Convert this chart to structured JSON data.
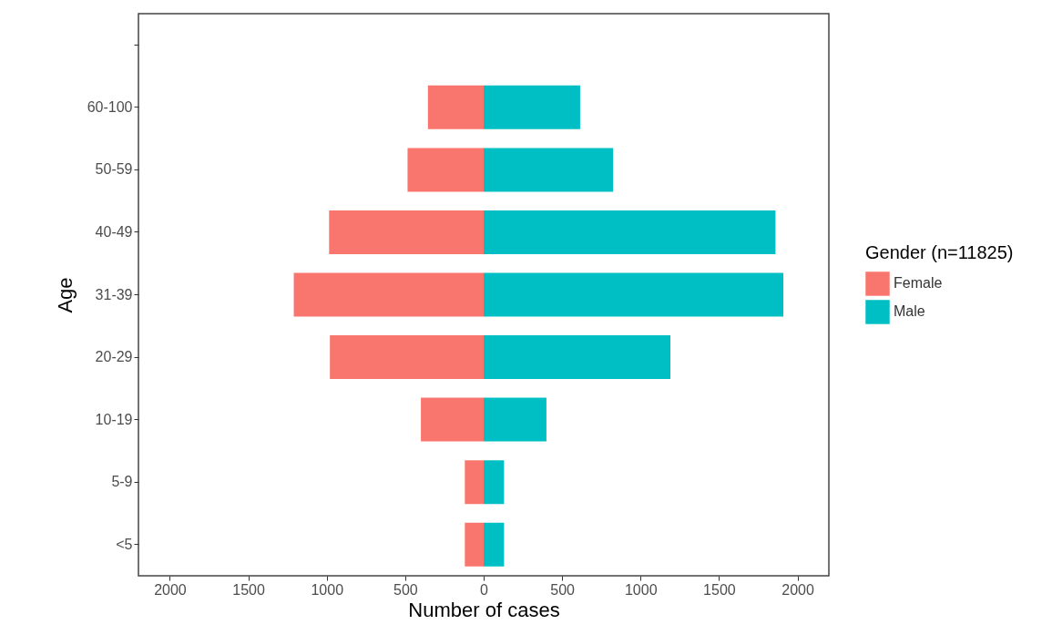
{
  "chart_data": {
    "type": "bar",
    "orientation": "horizontal",
    "xlabel": "Number of cases",
    "ylabel": "Age",
    "legend_title": "Gender (n=11825)",
    "categories": [
      null,
      "60-100",
      "50-59",
      "40-49",
      "31-39",
      "20-29",
      "10-19",
      "5-9",
      "<5"
    ],
    "series": [
      {
        "name": "Female",
        "color": "#f8766d",
        "values": [
          null,
          -355,
          -485,
          -985,
          -1210,
          -980,
          -400,
          -120,
          -120
        ]
      },
      {
        "name": "Male",
        "color": "#00bfc4",
        "values": [
          null,
          615,
          825,
          1860,
          1910,
          1190,
          400,
          130,
          130
        ]
      }
    ],
    "xlim": [
      -2200,
      2200
    ],
    "xticks": [
      {
        "value": -2000,
        "label": "2000"
      },
      {
        "value": -1500,
        "label": "1500"
      },
      {
        "value": -1000,
        "label": "1000"
      },
      {
        "value": -500,
        "label": "500"
      },
      0,
      500,
      1000,
      1500,
      2000
    ],
    "stacked": true,
    "grid": false,
    "legend": "right"
  }
}
